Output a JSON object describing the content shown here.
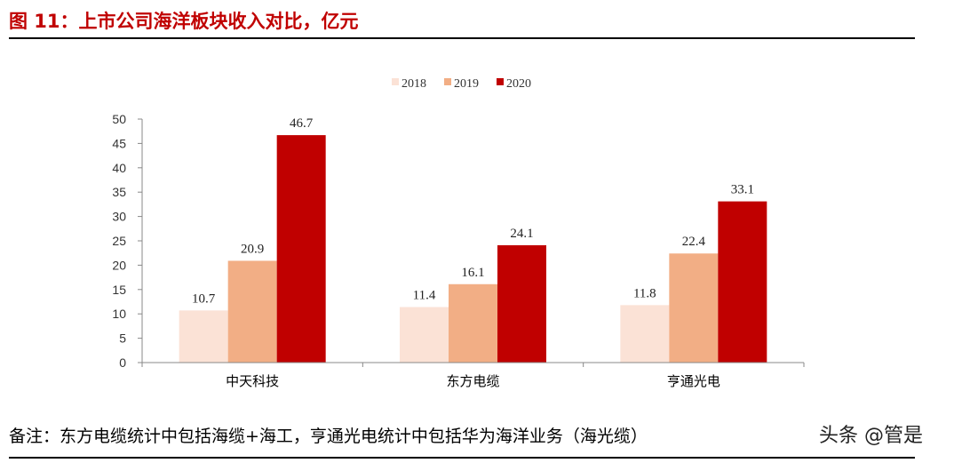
{
  "header": {
    "title": "图 11：上市公司海洋板块收入对比，亿元"
  },
  "footer": {
    "note": "备注：东方电缆统计中包括海缆+海工，亨通光电统计中包括华为海洋业务（海光缆）",
    "watermark": "头条 @管是"
  },
  "colors": {
    "title": "#c00000",
    "s2018": "#fbe2d6",
    "s2019": "#f2ae85",
    "s2020": "#c00000"
  },
  "chart_data": {
    "type": "bar",
    "categories": [
      "中天科技",
      "东方电缆",
      "亨通光电"
    ],
    "series": [
      {
        "name": "2018",
        "values": [
          10.7,
          11.4,
          11.8
        ]
      },
      {
        "name": "2019",
        "values": [
          20.9,
          16.1,
          22.4
        ]
      },
      {
        "name": "2020",
        "values": [
          46.7,
          24.1,
          33.1
        ]
      }
    ],
    "yticks": [
      "0",
      "5",
      "10",
      "15",
      "20",
      "25",
      "30",
      "35",
      "40",
      "45",
      "50"
    ],
    "ylim": [
      0,
      50
    ],
    "legend_position": "top-center",
    "grid": false
  }
}
